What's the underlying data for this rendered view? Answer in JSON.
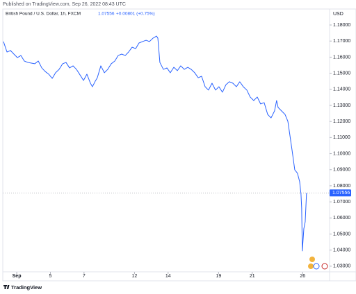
{
  "chart_data": {
    "type": "line",
    "published": "Published on TradingView.com, Sep 26, 2022 08:43 UTC",
    "symbol": "British Pound / U.S. Dollar, 1h, FXCM",
    "change": "+0.00801 (+0.75%)",
    "currency": "USD",
    "brand": "TradingView",
    "last_value": 1.07556,
    "color": "#2962ff",
    "grid": false,
    "xlim": [
      -0.83,
      18.6
    ],
    "ylim": [
      1.0265,
      1.1895
    ],
    "xticks": [
      {
        "value": 0,
        "label": "Sep"
      },
      {
        "value": 2,
        "label": "5"
      },
      {
        "value": 4,
        "label": "7"
      },
      {
        "value": 7,
        "label": "12"
      },
      {
        "value": 9,
        "label": "14"
      },
      {
        "value": 12,
        "label": "19"
      },
      {
        "value": 14,
        "label": "21"
      },
      {
        "value": 17,
        "label": "26"
      }
    ],
    "yticks": [
      {
        "value": 1.18,
        "label": "1.18000"
      },
      {
        "value": 1.17,
        "label": "1.17000"
      },
      {
        "value": 1.16,
        "label": "1.16000"
      },
      {
        "value": 1.15,
        "label": "1.15000"
      },
      {
        "value": 1.14,
        "label": "1.14000"
      },
      {
        "value": 1.13,
        "label": "1.13000"
      },
      {
        "value": 1.12,
        "label": "1.12000"
      },
      {
        "value": 1.11,
        "label": "1.11000"
      },
      {
        "value": 1.1,
        "label": "1.10000"
      },
      {
        "value": 1.09,
        "label": "1.09000"
      },
      {
        "value": 1.08,
        "label": "1.08000"
      },
      {
        "value": 1.07,
        "label": "1.07000"
      },
      {
        "value": 1.06,
        "label": "1.06000"
      },
      {
        "value": 1.05,
        "label": "1.05000"
      },
      {
        "value": 1.04,
        "label": "1.04000"
      },
      {
        "value": 1.03,
        "label": "1.03000"
      }
    ],
    "x": [
      -0.79,
      -0.58,
      -0.37,
      -0.17,
      0.04,
      0.25,
      0.45,
      0.66,
      0.87,
      1.07,
      1.28,
      1.49,
      1.69,
      1.9,
      2.11,
      2.31,
      2.52,
      2.73,
      2.93,
      3.14,
      3.35,
      3.55,
      3.76,
      3.97,
      4.17,
      4.38,
      4.5,
      4.67,
      4.79,
      5.0,
      5.21,
      5.41,
      5.62,
      5.83,
      6.03,
      6.24,
      6.45,
      6.65,
      6.86,
      7.07,
      7.27,
      7.48,
      7.69,
      7.89,
      8.1,
      8.31,
      8.39,
      8.51,
      8.72,
      8.93,
      9.13,
      9.34,
      9.55,
      9.75,
      9.96,
      10.17,
      10.37,
      10.58,
      10.79,
      10.99,
      11.2,
      11.4,
      11.61,
      11.82,
      12.02,
      12.23,
      12.44,
      12.64,
      12.85,
      13.06,
      13.26,
      13.47,
      13.68,
      13.88,
      14.09,
      14.3,
      14.5,
      14.71,
      14.92,
      15.12,
      15.33,
      15.45,
      15.54,
      15.74,
      15.95,
      16.12,
      16.24,
      16.36,
      16.53,
      16.69,
      16.82,
      16.9,
      16.94,
      16.98,
      17.07,
      17.15,
      17.23
    ],
    "values": [
      1.1697,
      1.1632,
      1.1641,
      1.1619,
      1.1597,
      1.161,
      1.1576,
      1.1567,
      1.1563,
      1.1559,
      1.1576,
      1.1533,
      1.1511,
      1.1494,
      1.1468,
      1.1503,
      1.1524,
      1.1559,
      1.1567,
      1.1533,
      1.1546,
      1.1524,
      1.149,
      1.1455,
      1.1494,
      1.1438,
      1.1416,
      1.1451,
      1.1472,
      1.1546,
      1.1503,
      1.1524,
      1.1559,
      1.1576,
      1.161,
      1.1619,
      1.161,
      1.1632,
      1.1662,
      1.1653,
      1.1688,
      1.1697,
      1.1705,
      1.1697,
      1.1718,
      1.1731,
      1.1718,
      1.1567,
      1.1524,
      1.1533,
      1.1503,
      1.1537,
      1.1516,
      1.1546,
      1.1524,
      1.1537,
      1.1524,
      1.1503,
      1.1472,
      1.1481,
      1.1416,
      1.1395,
      1.1438,
      1.1395,
      1.1416,
      1.1382,
      1.1429,
      1.1447,
      1.1438,
      1.1416,
      1.1447,
      1.1416,
      1.1395,
      1.1352,
      1.133,
      1.1352,
      1.1309,
      1.1317,
      1.1244,
      1.1222,
      1.1266,
      1.133,
      1.1287,
      1.1266,
      1.1244,
      1.1201,
      1.1115,
      1.1028,
      1.0899,
      1.0878,
      1.0826,
      1.0748,
      1.0662,
      1.0395,
      1.0533,
      1.0576,
      1.07556
    ]
  }
}
